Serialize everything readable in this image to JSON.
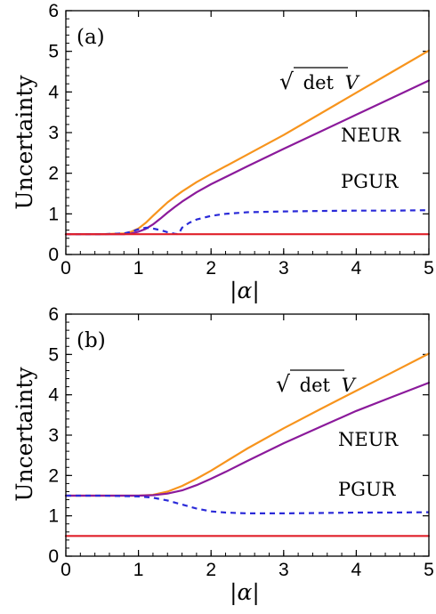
{
  "chart_data": [
    {
      "type": "line",
      "panel_label": "(a)",
      "xlabel": "|α|",
      "ylabel": "Uncertainty",
      "xlim": [
        0,
        5
      ],
      "ylim": [
        0,
        6
      ],
      "xticks": [
        "0",
        "1",
        "2",
        "3",
        "4",
        "5"
      ],
      "yticks": [
        "0",
        "1",
        "2",
        "3",
        "4",
        "5",
        "6"
      ],
      "grid": false,
      "legend": "none",
      "series": [
        {
          "label_parts": [
            "√",
            "det",
            "V"
          ],
          "color": "#f7941d",
          "dash": "solid",
          "x": [
            0,
            0.5,
            0.8,
            0.9,
            1.0,
            1.1,
            1.2,
            1.3,
            1.4,
            1.5,
            1.6,
            1.8,
            2.0,
            2.5,
            3.0,
            3.5,
            4.0,
            4.5,
            5.0
          ],
          "y": [
            0.5,
            0.5,
            0.52,
            0.56,
            0.64,
            0.78,
            0.95,
            1.12,
            1.28,
            1.42,
            1.55,
            1.78,
            1.98,
            2.46,
            2.94,
            3.46,
            3.98,
            4.5,
            5.02
          ]
        },
        {
          "name": "NEUR",
          "color": "#8b1a9b",
          "dash": "solid",
          "x": [
            0,
            0.5,
            0.8,
            0.9,
            1.0,
            1.1,
            1.2,
            1.3,
            1.4,
            1.5,
            1.6,
            1.8,
            2.0,
            2.5,
            3.0,
            3.5,
            4.0,
            4.5,
            5.0
          ],
          "y": [
            0.5,
            0.5,
            0.5,
            0.52,
            0.56,
            0.63,
            0.74,
            0.88,
            1.03,
            1.17,
            1.3,
            1.53,
            1.73,
            2.17,
            2.6,
            3.02,
            3.44,
            3.86,
            4.28
          ]
        },
        {
          "name": "PGUR",
          "color": "#2a2ad8",
          "dash": "dashed",
          "x": [
            0,
            0.5,
            0.8,
            0.9,
            1.0,
            1.1,
            1.2,
            1.3,
            1.4,
            1.5,
            1.55,
            1.6,
            1.7,
            1.8,
            2.0,
            2.2,
            2.5,
            3.0,
            3.5,
            4.0,
            4.5,
            5.0
          ],
          "y": [
            0.5,
            0.5,
            0.52,
            0.56,
            0.62,
            0.66,
            0.64,
            0.6,
            0.55,
            0.51,
            0.5,
            0.66,
            0.78,
            0.86,
            0.95,
            1.0,
            1.04,
            1.06,
            1.07,
            1.08,
            1.08,
            1.09
          ]
        },
        {
          "color": "#e0202a",
          "dash": "solid",
          "x": [
            0,
            5
          ],
          "y": [
            0.5,
            0.5
          ]
        }
      ]
    },
    {
      "type": "line",
      "panel_label": "(b)",
      "xlabel": "|α|",
      "ylabel": "Uncertainty",
      "xlim": [
        0,
        5
      ],
      "ylim": [
        0,
        6
      ],
      "xticks": [
        "0",
        "1",
        "2",
        "3",
        "4",
        "5"
      ],
      "yticks": [
        "0",
        "1",
        "2",
        "3",
        "4",
        "5",
        "6"
      ],
      "grid": false,
      "legend": "none",
      "series": [
        {
          "label_parts": [
            "√",
            "det",
            "V"
          ],
          "color": "#f7941d",
          "dash": "solid",
          "x": [
            0,
            0.5,
            1.0,
            1.2,
            1.4,
            1.6,
            1.8,
            2.0,
            2.2,
            2.5,
            3.0,
            3.5,
            4.0,
            4.5,
            5.0
          ],
          "y": [
            1.5,
            1.5,
            1.5,
            1.52,
            1.6,
            1.74,
            1.92,
            2.12,
            2.34,
            2.67,
            3.17,
            3.64,
            4.1,
            4.56,
            5.02
          ]
        },
        {
          "name": "NEUR",
          "color": "#8b1a9b",
          "dash": "solid",
          "x": [
            0,
            0.5,
            1.0,
            1.2,
            1.4,
            1.6,
            1.8,
            2.0,
            2.2,
            2.5,
            3.0,
            3.5,
            4.0,
            4.5,
            5.0
          ],
          "y": [
            1.5,
            1.5,
            1.5,
            1.51,
            1.55,
            1.63,
            1.76,
            1.92,
            2.09,
            2.36,
            2.8,
            3.2,
            3.6,
            3.95,
            4.3
          ]
        },
        {
          "name": "PGUR",
          "color": "#2a2ad8",
          "dash": "dashed",
          "x": [
            0,
            0.5,
            1.0,
            1.2,
            1.4,
            1.6,
            1.8,
            2.0,
            2.2,
            2.5,
            3.0,
            3.5,
            4.0,
            4.5,
            5.0
          ],
          "y": [
            1.5,
            1.5,
            1.48,
            1.45,
            1.38,
            1.28,
            1.18,
            1.11,
            1.08,
            1.06,
            1.06,
            1.07,
            1.08,
            1.08,
            1.09
          ]
        },
        {
          "color": "#e0202a",
          "dash": "solid",
          "x": [
            0,
            5
          ],
          "y": [
            0.5,
            0.5
          ]
        }
      ]
    }
  ]
}
